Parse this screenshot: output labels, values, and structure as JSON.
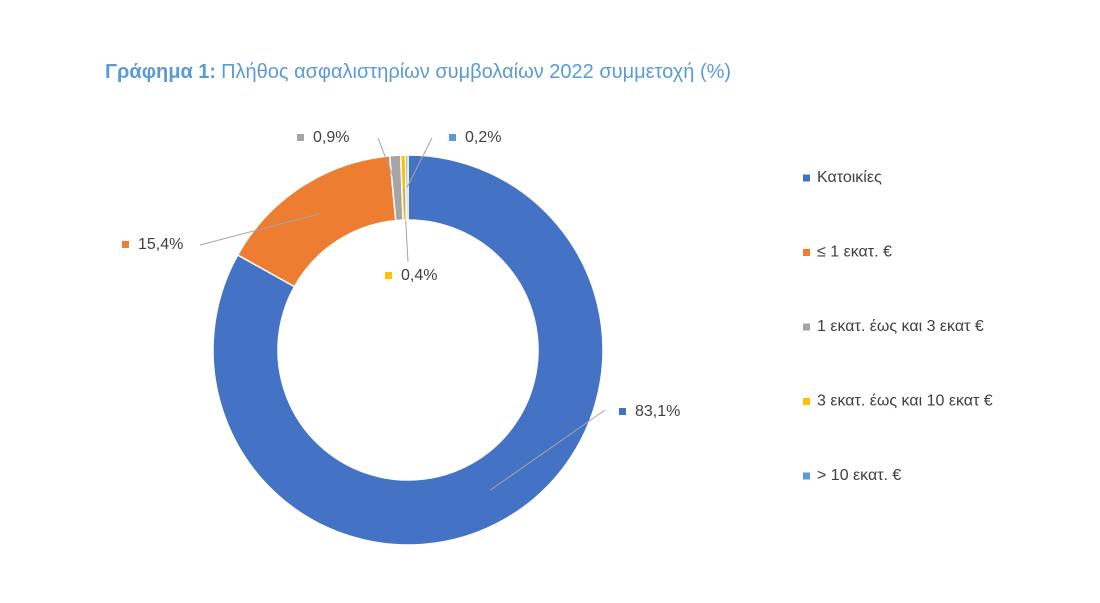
{
  "chart_data": {
    "type": "donut",
    "title_label": "Γράφημα 1:",
    "title": "Πλήθος ασφαλιστηρίων συμβολαίων 2022  συμμετοχή (%)",
    "categories": [
      "Κατοικίες",
      "≤ 1 εκατ. €",
      "1 εκατ. έως και 3 εκατ €",
      "3 εκατ. έως και 10 εκατ €",
      ">  10 εκατ. €"
    ],
    "values": [
      83.1,
      15.4,
      0.9,
      0.4,
      0.2
    ],
    "value_labels": [
      "83,1%",
      "15,4%",
      "0,9%",
      "0,4%",
      "0,2%"
    ],
    "colors": [
      "#4472c4",
      "#ed7d31",
      "#a5a5a5",
      "#ffc000",
      "#5b9bd5"
    ],
    "legend": "right"
  }
}
